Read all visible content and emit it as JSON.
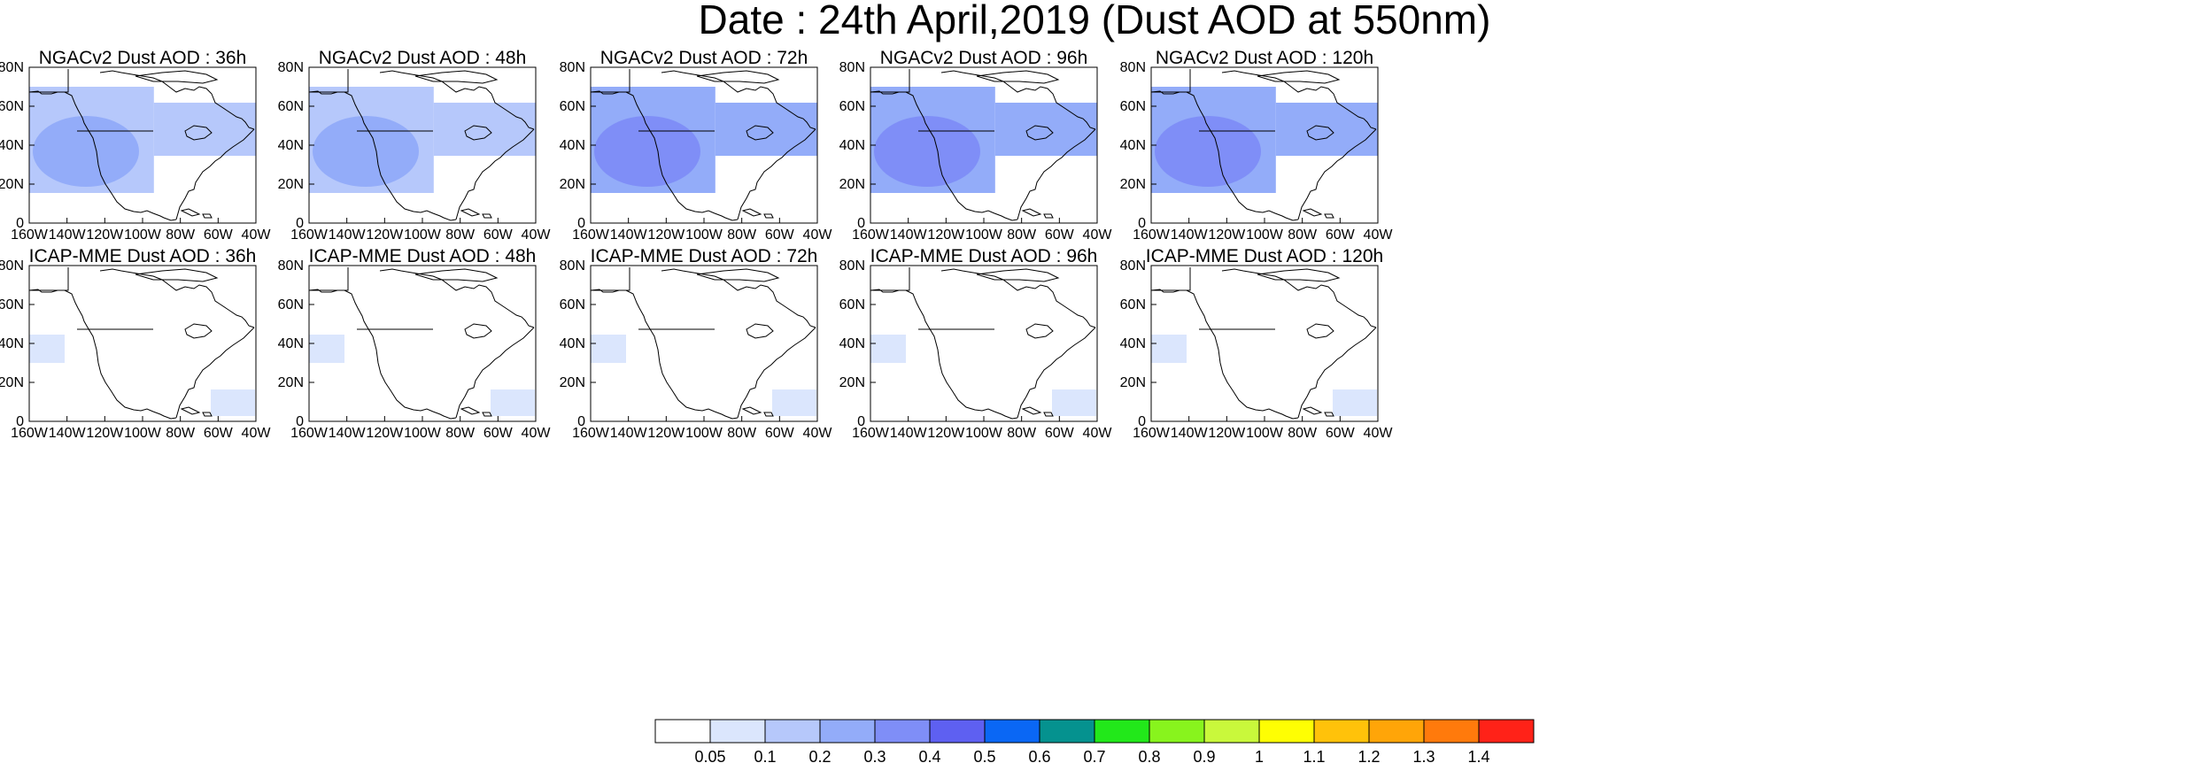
{
  "figure": {
    "title": "Date : 24th April,2019 (Dust AOD at 550nm)"
  },
  "axes": {
    "lon_labels": [
      "160W",
      "140W",
      "120W",
      "100W",
      "80W",
      "60W",
      "40W"
    ],
    "lat_labels": [
      "0",
      "20N",
      "40N",
      "60N",
      "80N"
    ]
  },
  "rows": [
    {
      "model": "NGACv2",
      "panels": [
        {
          "title": "NGACv2 Dust AOD : 36h",
          "lead_hours": 36,
          "dust_level": 0.1
        },
        {
          "title": "NGACv2 Dust AOD : 48h",
          "lead_hours": 48,
          "dust_level": 0.1
        },
        {
          "title": "NGACv2 Dust AOD : 72h",
          "lead_hours": 72,
          "dust_level": 0.2
        },
        {
          "title": "NGACv2 Dust AOD : 96h",
          "lead_hours": 96,
          "dust_level": 0.2
        },
        {
          "title": "NGACv2 Dust AOD : 120h",
          "lead_hours": 120,
          "dust_level": 0.2
        }
      ]
    },
    {
      "model": "ICAP-MME",
      "panels": [
        {
          "title": "ICAP-MME Dust AOD : 36h",
          "lead_hours": 36,
          "dust_level": 0.05
        },
        {
          "title": "ICAP-MME Dust AOD : 48h",
          "lead_hours": 48,
          "dust_level": 0.05
        },
        {
          "title": "ICAP-MME Dust AOD : 72h",
          "lead_hours": 72,
          "dust_level": 0.05
        },
        {
          "title": "ICAP-MME Dust AOD : 96h",
          "lead_hours": 96,
          "dust_level": 0.05
        },
        {
          "title": "ICAP-MME Dust AOD : 120h",
          "lead_hours": 120,
          "dust_level": 0.05
        }
      ]
    }
  ],
  "colorbar": {
    "labels": [
      "0.05",
      "0.1",
      "0.2",
      "0.3",
      "0.4",
      "0.5",
      "0.6",
      "0.7",
      "0.8",
      "0.9",
      "1",
      "1.1",
      "1.2",
      "1.3",
      "1.4"
    ],
    "colors": [
      "#ffffff",
      "#dbe6fd",
      "#b6c8fb",
      "#93acf9",
      "#7f8ef7",
      "#5e60f1",
      "#0a67f5",
      "#05928f",
      "#22e81a",
      "#88f41d",
      "#c9f83b",
      "#fefe03",
      "#ffc20a",
      "#ffa508",
      "#ff7a0c",
      "#ff2218"
    ]
  }
}
